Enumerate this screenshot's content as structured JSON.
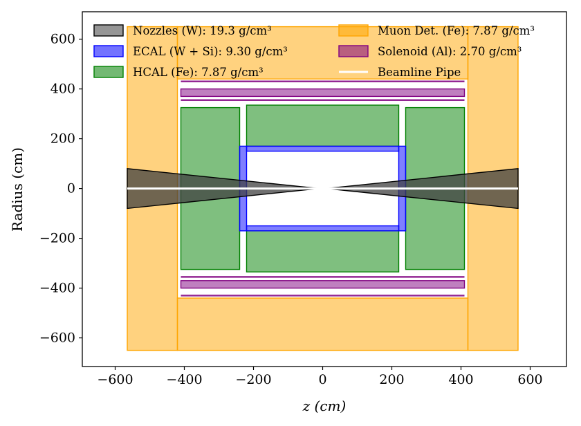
{
  "chart_data": {
    "type": "area",
    "title": "",
    "xlabel": "z (cm)",
    "ylabel": "Radius (cm)",
    "xlim": [
      -695,
      705
    ],
    "ylim": [
      -715,
      710
    ],
    "xticks": [
      -600,
      -400,
      -200,
      0,
      200,
      400,
      600
    ],
    "yticks": [
      -600,
      -400,
      -200,
      0,
      200,
      400,
      600
    ],
    "xtick_labels": [
      "−600",
      "−400",
      "−200",
      "0",
      "200",
      "400",
      "600"
    ],
    "ytick_labels": [
      "−600",
      "−400",
      "−200",
      "0",
      "200",
      "400",
      "600"
    ],
    "grid": false,
    "legend_position": "top",
    "series": [
      {
        "name": "Muon Det. (Fe): 7.87 g/cm³",
        "color": "#ffa500",
        "regions": [
          {
            "z": [
              -565,
              -420
            ],
            "r": [
              -650,
              650
            ]
          },
          {
            "z": [
              420,
              565
            ],
            "r": [
              -650,
              650
            ]
          },
          {
            "z": [
              -420,
              420
            ],
            "r": [
              440,
              650
            ]
          },
          {
            "z": [
              -420,
              420
            ],
            "r": [
              -650,
              -440
            ]
          }
        ]
      },
      {
        "name": "Solenoid (Al): 2.70 g/cm³",
        "color": "#800080",
        "regions": [
          {
            "z": [
              -410,
              410
            ],
            "r": [
              370,
              400
            ]
          },
          {
            "z": [
              -410,
              410
            ],
            "r": [
              -400,
              -370
            ]
          }
        ],
        "lines": [
          {
            "z": [
              -410,
              410
            ],
            "r": 430
          },
          {
            "z": [
              -410,
              410
            ],
            "r": 355
          },
          {
            "z": [
              -410,
              410
            ],
            "r": -355
          },
          {
            "z": [
              -410,
              410
            ],
            "r": -430
          }
        ]
      },
      {
        "name": "HCAL (Fe): 7.87 g/cm³",
        "color": "#008000",
        "regions": [
          {
            "z": [
              -220,
              220
            ],
            "r": [
              170,
              335
            ]
          },
          {
            "z": [
              -220,
              220
            ],
            "r": [
              -335,
              -170
            ]
          },
          {
            "z": [
              -410,
              -240
            ],
            "r": [
              -325,
              325
            ]
          },
          {
            "z": [
              240,
              410
            ],
            "r": [
              -325,
              325
            ]
          }
        ]
      },
      {
        "name": "ECAL (W + Si): 9.30 g/cm³",
        "color": "#0000ff",
        "regions": [
          {
            "z": [
              -220,
              220
            ],
            "r": [
              150,
              170
            ]
          },
          {
            "z": [
              -220,
              220
            ],
            "r": [
              -170,
              -150
            ]
          },
          {
            "z": [
              -240,
              -220
            ],
            "r": [
              -170,
              170
            ]
          },
          {
            "z": [
              220,
              240
            ],
            "r": [
              -170,
              170
            ]
          }
        ]
      },
      {
        "name": "Nozzles (W): 19.3 g/cm³",
        "color": "#404040",
        "polygons": [
          [
            [
              -565,
              80
            ],
            [
              -565,
              -80
            ],
            [
              -10,
              0
            ]
          ],
          [
            [
              565,
              80
            ],
            [
              565,
              -80
            ],
            [
              10,
              0
            ]
          ]
        ]
      },
      {
        "name": "Beamline Pipe",
        "color": "#ffffff",
        "lines": [
          {
            "z": [
              -565,
              565
            ],
            "r": 0
          }
        ]
      }
    ],
    "legend": [
      {
        "label": "Nozzles (W): 19.3 g/cm³",
        "color": "#404040",
        "swatch": "patch"
      },
      {
        "label": "ECAL (W + Si): 9.30 g/cm³",
        "color": "#0000ff",
        "swatch": "patch"
      },
      {
        "label": "HCAL (Fe): 7.87 g/cm³",
        "color": "#008000",
        "swatch": "patch"
      },
      {
        "label": "Muon Det. (Fe): 7.87 g/cm³",
        "color": "#ffa500",
        "swatch": "patch"
      },
      {
        "label": "Solenoid (Al): 2.70 g/cm³",
        "color": "#800080",
        "swatch": "patch"
      },
      {
        "label": "Beamline Pipe",
        "color": "#ffffff",
        "swatch": "line"
      }
    ]
  }
}
